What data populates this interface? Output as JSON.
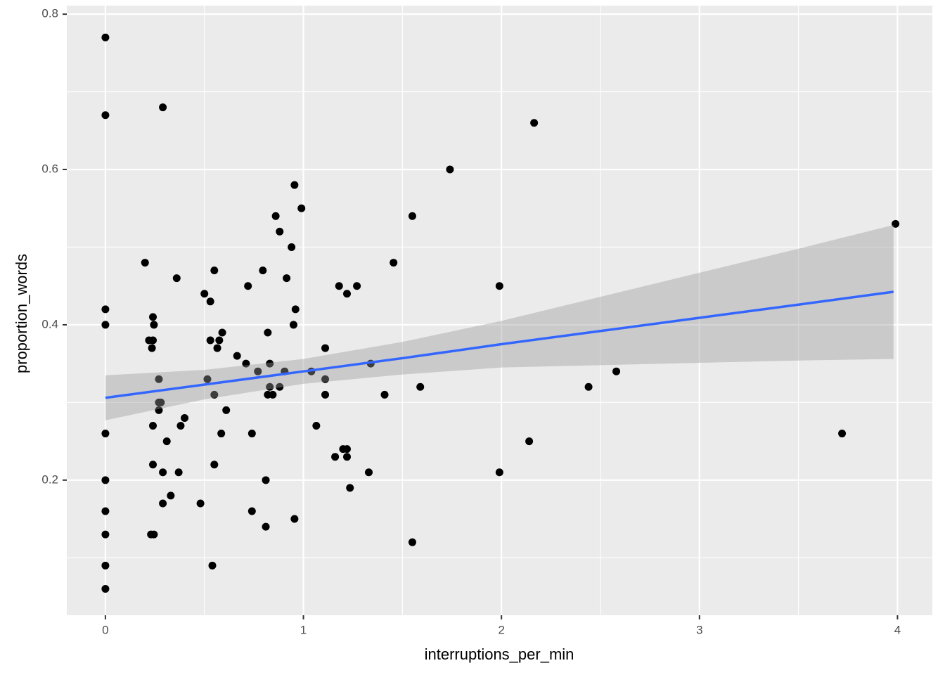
{
  "chart_data": {
    "type": "scatter",
    "x_label": "interruptions_per_min",
    "y_label": "proportion_words",
    "xlim": [
      -0.195,
      4.176
    ],
    "ylim": [
      0.026,
      0.811
    ],
    "xticks": [
      0,
      1,
      2,
      3,
      4
    ],
    "yticks": [
      0.2,
      0.4,
      0.6,
      0.8
    ],
    "x_minor_ticks": [
      0.5,
      1.5,
      2.5,
      3.5
    ],
    "y_minor_ticks": [
      0.1,
      0.3,
      0.5,
      0.7
    ],
    "grid": true,
    "color": "#000000",
    "x": [
      0,
      0,
      0.29,
      0,
      0,
      0,
      0,
      0,
      0,
      0,
      0,
      0.2,
      0.36,
      0.24,
      0.245,
      0.22,
      0.24,
      0.235,
      0.27,
      0.27,
      0.28,
      0.27,
      0.24,
      0.38,
      0.4,
      0.31,
      0.24,
      0.29,
      0.37,
      0.33,
      0.29,
      0.23,
      0.245,
      0.55,
      0.5,
      0.53,
      0.53,
      0.575,
      0.565,
      0.59,
      0.515,
      0.55,
      0.61,
      0.585,
      0.55,
      0.48,
      0.54,
      0.665,
      0.71,
      0.72,
      0.77,
      0.795,
      0.74,
      0.74,
      0.81,
      0.81,
      0.82,
      0.83,
      0.83,
      0.82,
      0.845,
      0.88,
      0.86,
      0.88,
      0.94,
      0.915,
      0.905,
      0.955,
      0.99,
      0.96,
      0.95,
      0.955,
      1.04,
      1.065,
      1.11,
      1.11,
      1.11,
      1.16,
      1.18,
      1.22,
      1.2,
      1.22,
      1.22,
      1.235,
      1.27,
      1.34,
      1.33,
      1.41,
      1.455,
      1.55,
      1.55,
      1.59,
      1.74,
      1.99,
      1.99,
      2.14,
      2.165,
      2.44,
      2.58,
      3.72,
      3.99
    ],
    "values": [
      0.77,
      0.67,
      0.68,
      0.42,
      0.4,
      0.26,
      0.2,
      0.16,
      0.13,
      0.09,
      0.06,
      0.48,
      0.46,
      0.41,
      0.4,
      0.38,
      0.38,
      0.37,
      0.33,
      0.29,
      0.3,
      0.3,
      0.27,
      0.27,
      0.28,
      0.25,
      0.22,
      0.21,
      0.21,
      0.18,
      0.17,
      0.13,
      0.13,
      0.47,
      0.44,
      0.43,
      0.38,
      0.38,
      0.37,
      0.39,
      0.33,
      0.31,
      0.29,
      0.26,
      0.22,
      0.17,
      0.09,
      0.36,
      0.35,
      0.45,
      0.34,
      0.47,
      0.26,
      0.16,
      0.2,
      0.14,
      0.39,
      0.35,
      0.32,
      0.31,
      0.31,
      0.32,
      0.54,
      0.52,
      0.5,
      0.46,
      0.34,
      0.58,
      0.55,
      0.42,
      0.4,
      0.15,
      0.34,
      0.27,
      0.37,
      0.33,
      0.31,
      0.23,
      0.45,
      0.44,
      0.24,
      0.24,
      0.23,
      0.19,
      0.45,
      0.35,
      0.21,
      0.31,
      0.48,
      0.54,
      0.12,
      0.32,
      0.6,
      0.45,
      0.21,
      0.25,
      0.66,
      0.32,
      0.34,
      0.26,
      0.53
    ],
    "fit": {
      "color": "#3366ff",
      "band_color": "#999999",
      "x": [
        0,
        0.5,
        1,
        1.5,
        2,
        2.5,
        3,
        3.5,
        3.98
      ],
      "values": [
        0.306,
        0.323,
        0.34,
        0.357,
        0.375,
        0.392,
        0.409,
        0.426,
        0.4425
      ],
      "lower": [
        0.277,
        0.304,
        0.324,
        0.336,
        0.345,
        0.348,
        0.351,
        0.354,
        0.356
      ],
      "upper": [
        0.335,
        0.342,
        0.356,
        0.378,
        0.405,
        0.436,
        0.467,
        0.498,
        0.5285
      ]
    }
  }
}
